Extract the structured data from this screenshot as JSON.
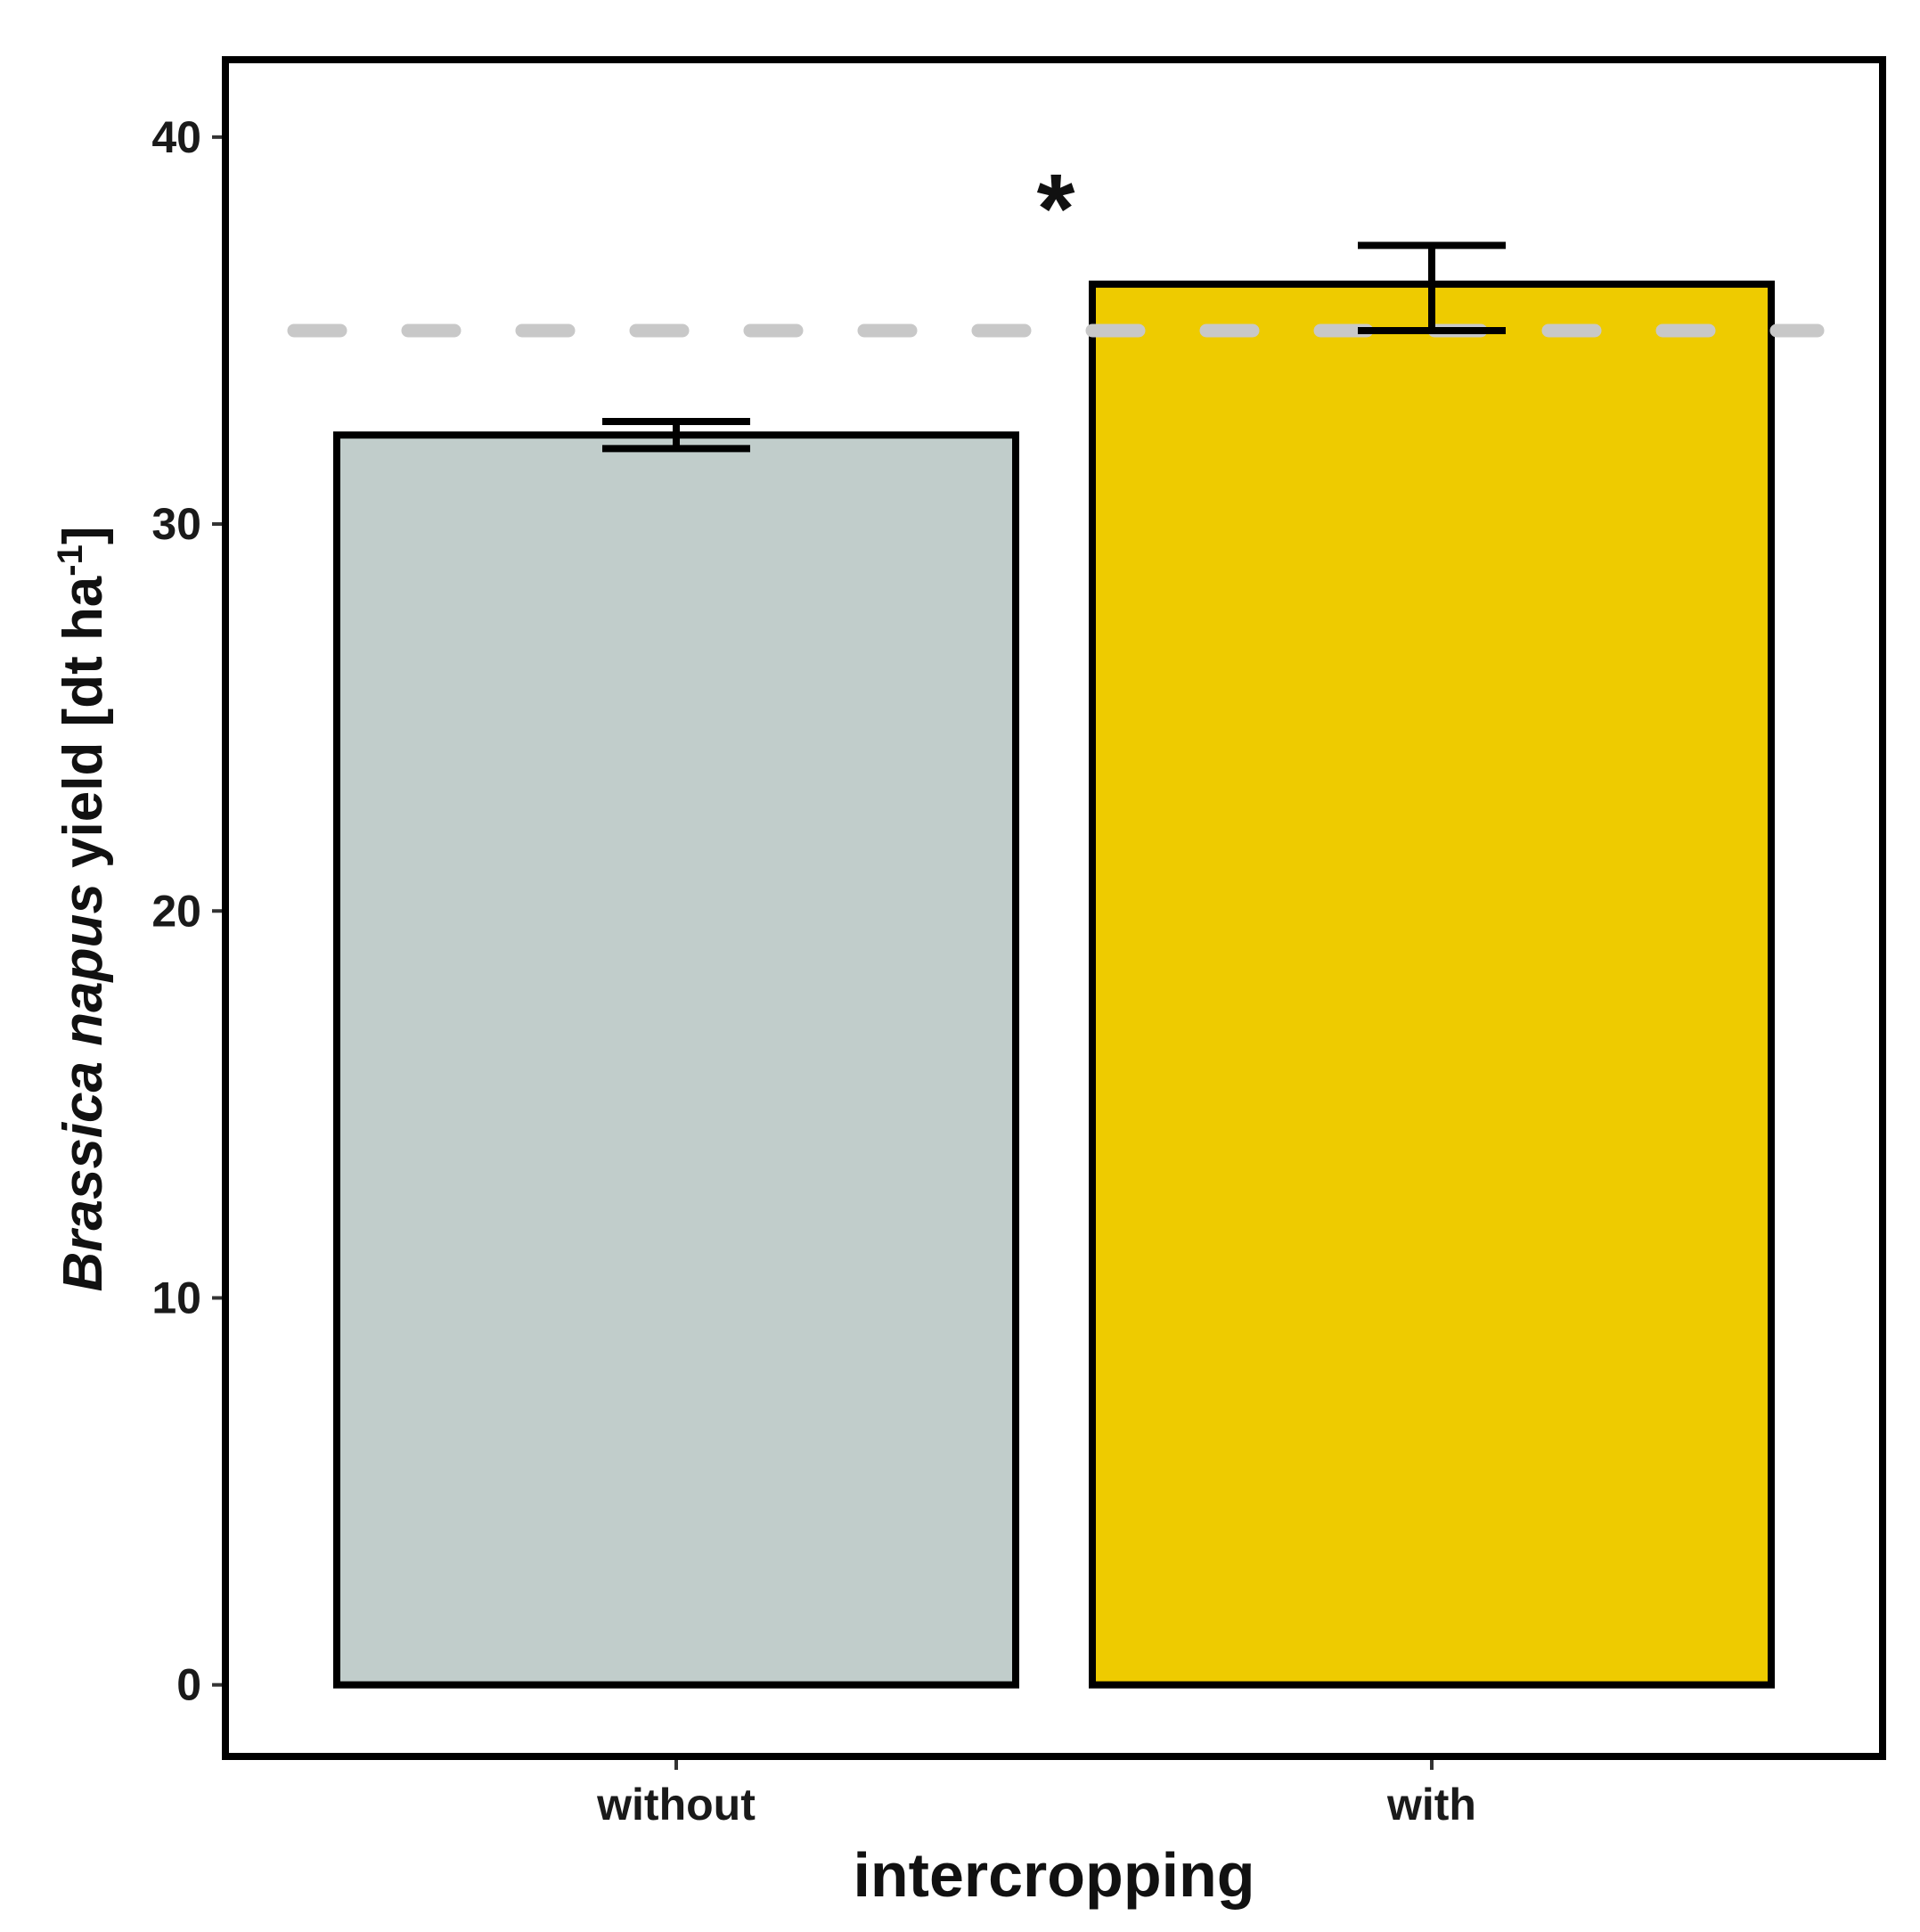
{
  "chart_data": {
    "type": "bar",
    "categories": [
      "without",
      "with"
    ],
    "values": [
      32.3,
      36.2
    ],
    "error_bars": [
      {
        "lower": 31.95,
        "upper": 32.65
      },
      {
        "lower": 35.0,
        "upper": 37.2
      }
    ],
    "bar_colors": [
      "#C1CDCB",
      "#EECB00"
    ],
    "reference_line": {
      "value": 35.0,
      "style": "dashed",
      "color": "#C8C8C8"
    },
    "significance_label": "*",
    "xlabel": "intercropping",
    "ylabel": {
      "italic_part": "Brassica napus",
      "plain_part": " yield [dt ha",
      "superscript": "-1",
      "closing": "]"
    },
    "y_ticks": [
      0,
      10,
      20,
      30,
      40
    ],
    "ylim": [
      -1.85,
      42
    ],
    "grid": false
  }
}
